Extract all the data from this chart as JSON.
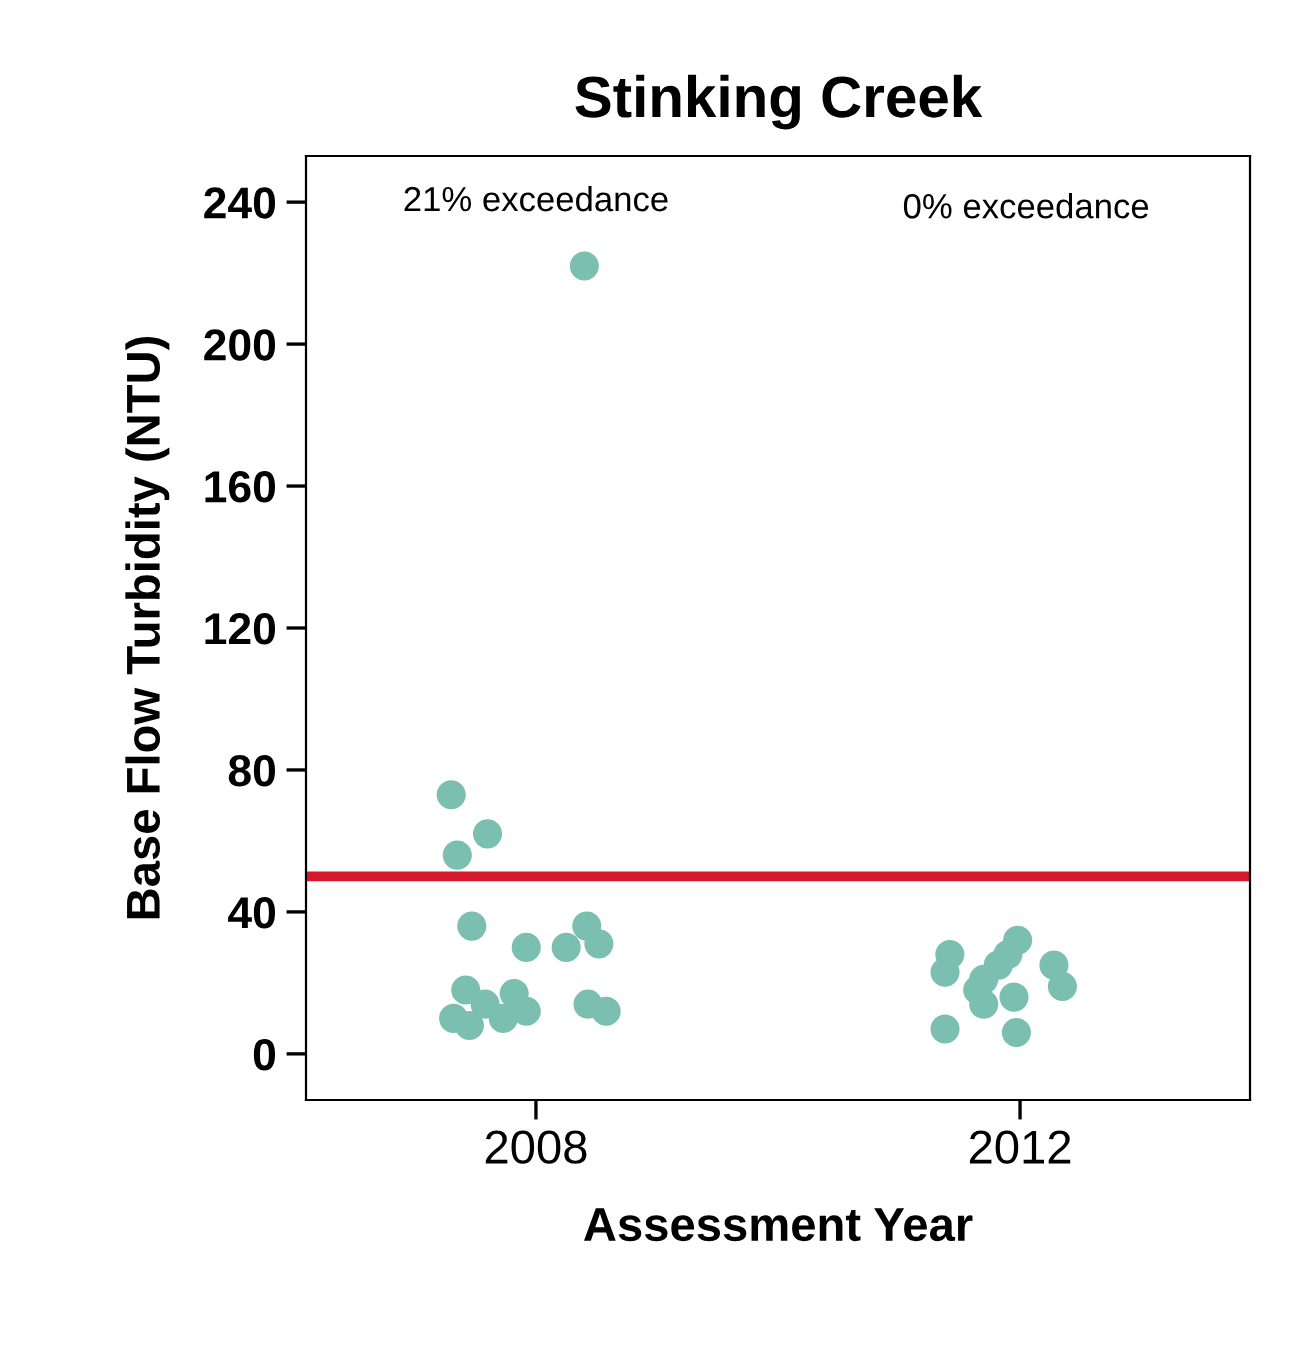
{
  "chart_data": {
    "type": "scatter",
    "title": "Stinking Creek",
    "xlabel": "Assessment Year",
    "ylabel": "Base Flow Turbidity (NTU)",
    "annotations": [
      "21% exceedance",
      "0% exceedance"
    ],
    "series": [
      {
        "color": "#7bbfb0",
        "x": [
          2007.3,
          2007.35,
          2007.6,
          2007.47,
          2007.92,
          2008.25,
          2008.42,
          2008.52,
          2007.42,
          2007.82,
          2007.32,
          2007.45,
          2007.58,
          2007.73,
          2007.92,
          2008.43,
          2008.58,
          2008.4
        ],
        "values": [
          73,
          56,
          62,
          36,
          30,
          30,
          36,
          31,
          18,
          17,
          10,
          8,
          14,
          10,
          12,
          14,
          12,
          222
        ]
      },
      {
        "color": "#7bbfb0",
        "x": [
          2011.42,
          2011.38,
          2011.98,
          2011.9,
          2011.82,
          2011.7,
          2011.65,
          2011.7,
          2011.95,
          2012.28,
          2012.35,
          2011.38,
          2011.97
        ],
        "values": [
          28,
          23,
          32,
          28,
          25,
          21,
          18,
          14,
          16,
          25,
          19,
          7,
          6
        ]
      }
    ],
    "xlim": [
      2006.1,
      2013.9
    ],
    "xticks": [
      2008,
      2012
    ],
    "ylim": [
      -13,
      253
    ],
    "yticks": [
      0,
      40,
      80,
      120,
      160,
      200,
      240
    ],
    "ref_lines": [
      {
        "axis": "y",
        "value": 50,
        "color": "#d7192f"
      }
    ],
    "marker": "circle",
    "grid": false,
    "legend": false
  }
}
